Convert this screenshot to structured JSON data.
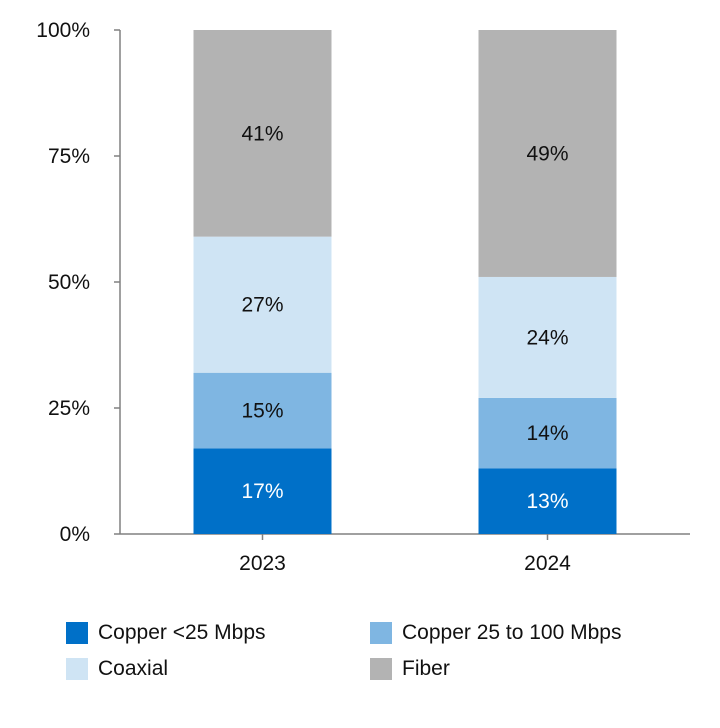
{
  "chart_data": {
    "type": "bar",
    "stacked": true,
    "categories": [
      "2023",
      "2024"
    ],
    "series": [
      {
        "name": "Copper <25 Mbps",
        "values": [
          17,
          13
        ],
        "labels": [
          "17%",
          "13%"
        ],
        "color": "#0070c8",
        "label_color": "#ffffff"
      },
      {
        "name": "Copper 25 to 100 Mbps",
        "values": [
          15,
          14
        ],
        "labels": [
          "15%",
          "14%"
        ],
        "color": "#7fb6e2",
        "label_color": "#111111"
      },
      {
        "name": "Coaxial",
        "values": [
          27,
          24
        ],
        "labels": [
          "27%",
          "24%"
        ],
        "color": "#cfe4f4",
        "label_color": "#111111"
      },
      {
        "name": "Fiber",
        "values": [
          41,
          49
        ],
        "labels": [
          "41%",
          "49%"
        ],
        "color": "#b3b3b3",
        "label_color": "#111111"
      }
    ],
    "y_ticks": [
      "0%",
      "25%",
      "50%",
      "75%",
      "100%"
    ],
    "ylim": [
      0,
      100
    ],
    "grid": false,
    "legend_position": "bottom",
    "title": "",
    "xlabel": "",
    "ylabel": ""
  }
}
